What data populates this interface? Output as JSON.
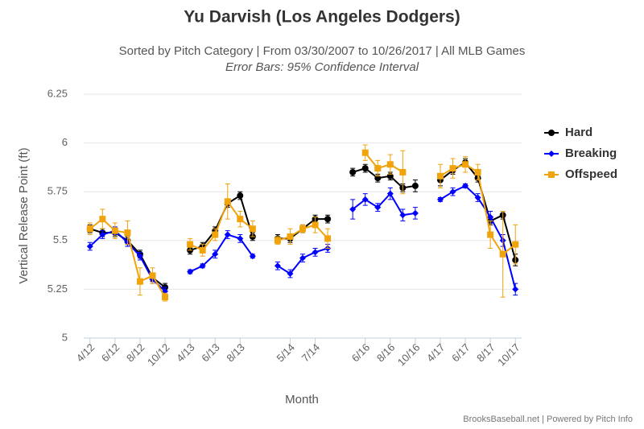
{
  "chart_data": {
    "type": "line",
    "title": "Yu Darvish (Los Angeles Dodgers)",
    "subtitle": "Sorted by Pitch Category | From 03/30/2007 to 10/26/2017 | All MLB Games",
    "subtitle2": "Error Bars: 95% Confidence Interval",
    "xlabel": "Month",
    "ylabel": "Vertical Release Point (ft)",
    "credit": "BrooksBaseball.net | Powered by Pitch Info",
    "categories": [
      "4/12",
      null,
      "6/12",
      null,
      "8/12",
      null,
      "10/12",
      null,
      "4/13",
      null,
      "6/13",
      null,
      "8/13",
      null,
      null,
      null,
      "5/14",
      null,
      "7/14",
      null,
      null,
      null,
      "6/16",
      null,
      "8/16",
      null,
      "10/16",
      null,
      "4/17",
      null,
      "6/17",
      null,
      "8/17",
      null,
      "10/17"
    ],
    "ylim": [
      5,
      6.25
    ],
    "yticks": [
      5,
      5.25,
      5.5,
      5.75,
      6,
      6.25
    ],
    "grid": true,
    "legend": "right",
    "series": [
      {
        "name": "Hard",
        "color": "#000000",
        "marker": "circle",
        "values": [
          5.56,
          5.54,
          5.54,
          5.5,
          5.43,
          5.31,
          5.26,
          null,
          5.45,
          5.47,
          5.55,
          5.69,
          5.73,
          5.52,
          null,
          5.51,
          5.51,
          5.56,
          5.61,
          5.61,
          null,
          5.85,
          5.87,
          5.82,
          5.83,
          5.77,
          5.78,
          null,
          5.81,
          5.86,
          5.9,
          5.82,
          5.6,
          5.63,
          5.4
        ],
        "errors": [
          0.02,
          0.02,
          0.02,
          0.02,
          0.02,
          0.02,
          0.02,
          null,
          0.02,
          0.02,
          0.02,
          0.02,
          0.02,
          0.02,
          null,
          0.02,
          0.02,
          0.02,
          0.02,
          0.02,
          null,
          0.02,
          0.02,
          0.02,
          0.02,
          0.02,
          0.03,
          null,
          0.03,
          0.02,
          0.02,
          0.02,
          0.02,
          0.02,
          0.03
        ]
      },
      {
        "name": "Breaking",
        "color": "#0000ff",
        "marker": "diamond",
        "values": [
          5.47,
          5.53,
          5.55,
          5.49,
          5.42,
          5.3,
          5.24,
          null,
          5.34,
          5.37,
          5.43,
          5.53,
          5.51,
          5.42,
          null,
          5.37,
          5.33,
          5.41,
          5.44,
          5.46,
          null,
          5.66,
          5.71,
          5.67,
          5.74,
          5.63,
          5.64,
          null,
          5.71,
          5.75,
          5.78,
          5.72,
          5.62,
          5.5,
          5.25
        ],
        "errors": [
          0.02,
          0.02,
          0.02,
          0.02,
          0.02,
          0.02,
          0.02,
          null,
          0.01,
          0.01,
          0.02,
          0.02,
          0.02,
          0.01,
          null,
          0.02,
          0.02,
          0.02,
          0.02,
          0.02,
          null,
          0.05,
          0.03,
          0.02,
          0.03,
          0.03,
          0.03,
          null,
          0.01,
          0.02,
          0.01,
          0.02,
          0.03,
          0.03,
          0.03
        ]
      },
      {
        "name": "Offspeed",
        "color": "#f0a30a",
        "marker": "square",
        "values": [
          5.56,
          5.61,
          5.55,
          5.54,
          5.29,
          5.32,
          5.21,
          null,
          5.48,
          5.45,
          5.53,
          5.7,
          5.61,
          5.56,
          null,
          5.5,
          5.52,
          5.56,
          5.58,
          5.51,
          null,
          null,
          5.95,
          5.87,
          5.89,
          5.85,
          null,
          null,
          5.83,
          5.87,
          5.89,
          5.85,
          5.53,
          5.43,
          5.48
        ],
        "errors": [
          0.03,
          0.05,
          0.04,
          0.06,
          0.07,
          0.04,
          0.02,
          null,
          0.03,
          0.03,
          0.03,
          0.09,
          0.04,
          0.04,
          null,
          0.02,
          0.04,
          0.02,
          0.04,
          0.05,
          null,
          null,
          0.04,
          0.04,
          0.05,
          0.11,
          null,
          null,
          0.06,
          0.05,
          0.04,
          0.04,
          0.07,
          0.22,
          0.1
        ]
      }
    ]
  }
}
